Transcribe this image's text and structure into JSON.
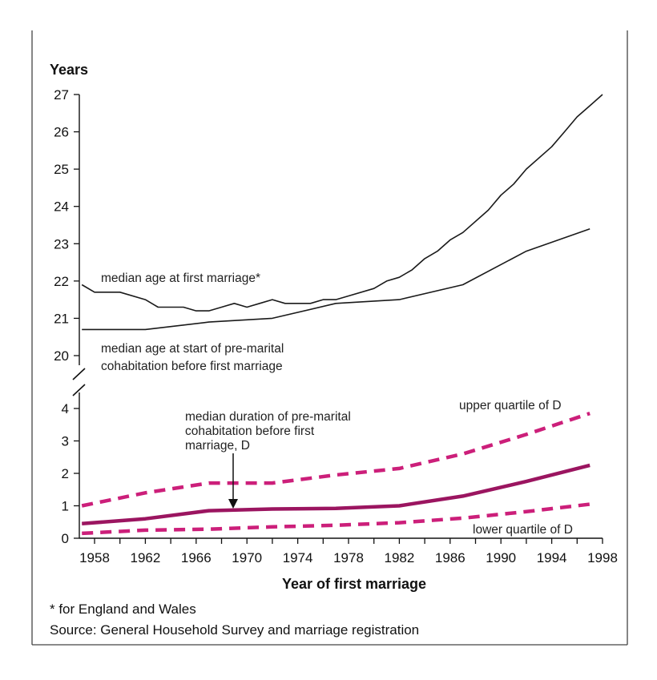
{
  "chart_data": [
    {
      "type": "line",
      "ylabel": "Years",
      "xlabel": "Year of first marriage",
      "xlim": [
        1956.8,
        1998
      ],
      "ylim": [
        20,
        27
      ],
      "yticks": [
        "20",
        "21",
        "22",
        "23",
        "24",
        "25",
        "26",
        "27"
      ],
      "grid": false,
      "series": [
        {
          "name": "median age at first marriage*",
          "color": "#1a1a1a",
          "x": [
            1957,
            1958,
            1960,
            1962,
            1963,
            1965,
            1966,
            1967,
            1968,
            1969,
            1970,
            1971,
            1972,
            1973,
            1975,
            1976,
            1977,
            1978,
            1980,
            1981,
            1982,
            1983,
            1984,
            1985,
            1986,
            1987,
            1989,
            1990,
            1991,
            1992,
            1994,
            1995,
            1996,
            1997,
            1998
          ],
          "values": [
            21.9,
            21.7,
            21.7,
            21.5,
            21.3,
            21.3,
            21.2,
            21.2,
            21.3,
            21.4,
            21.3,
            21.4,
            21.5,
            21.4,
            21.4,
            21.5,
            21.5,
            21.6,
            21.8,
            22.0,
            22.1,
            22.3,
            22.6,
            22.8,
            23.1,
            23.3,
            23.9,
            24.3,
            24.6,
            25.0,
            25.6,
            26.0,
            26.4,
            26.7,
            27.0
          ]
        },
        {
          "name": "median age at start of pre-marital cohabitation before first marriage",
          "color": "#1a1a1a",
          "x": [
            1957,
            1962,
            1967,
            1972,
            1977,
            1982,
            1987,
            1992,
            1997
          ],
          "values": [
            20.7,
            20.7,
            20.9,
            21.0,
            21.4,
            21.5,
            21.9,
            22.8,
            23.4
          ]
        }
      ]
    },
    {
      "type": "line",
      "xlabel": "Year of first marriage",
      "xlim": [
        1956.8,
        1998
      ],
      "ylim": [
        0,
        4
      ],
      "yticks": [
        "0",
        "1",
        "2",
        "3",
        "4"
      ],
      "xticks": [
        "1958",
        "1962",
        "1966",
        "1970",
        "1974",
        "1978",
        "1982",
        "1986",
        "1990",
        "1994",
        "1998"
      ],
      "grid": false,
      "series": [
        {
          "name": "upper quartile of D",
          "color": "#cc1f7a",
          "dashed": true,
          "x": [
            1957,
            1962,
            1967,
            1972,
            1977,
            1982,
            1987,
            1992,
            1997
          ],
          "values": [
            1.0,
            1.4,
            1.7,
            1.7,
            1.95,
            2.15,
            2.6,
            3.2,
            3.85
          ]
        },
        {
          "name": "median duration of pre-marital cohabitation before first marriage, D",
          "color": "#9b1560",
          "x": [
            1957,
            1962,
            1967,
            1972,
            1977,
            1982,
            1987,
            1992,
            1997
          ],
          "values": [
            0.45,
            0.6,
            0.85,
            0.9,
            0.92,
            1.0,
            1.3,
            1.75,
            2.25
          ]
        },
        {
          "name": "lower quartile of D",
          "color": "#cc1f7a",
          "dashed": true,
          "x": [
            1957,
            1962,
            1967,
            1972,
            1977,
            1982,
            1987,
            1992,
            1997
          ],
          "values": [
            0.15,
            0.25,
            0.28,
            0.35,
            0.4,
            0.48,
            0.62,
            0.82,
            1.05
          ]
        }
      ]
    }
  ],
  "labels": {
    "years": "Years",
    "xlabel": "Year of first marriage",
    "marriage": "median age at first marriage*",
    "cohab_1": "median age at start of pre-marital",
    "cohab_2": "cohabitation before first marriage",
    "duration_1": "median duration of pre-marital",
    "duration_2": "cohabitation before first",
    "duration_3": "marriage, D",
    "upper": "upper quartile of D",
    "lower": "lower quartile of D"
  },
  "footnotes": {
    "note": "* for England and Wales",
    "source": "Source: General Household Survey and marriage registration"
  }
}
